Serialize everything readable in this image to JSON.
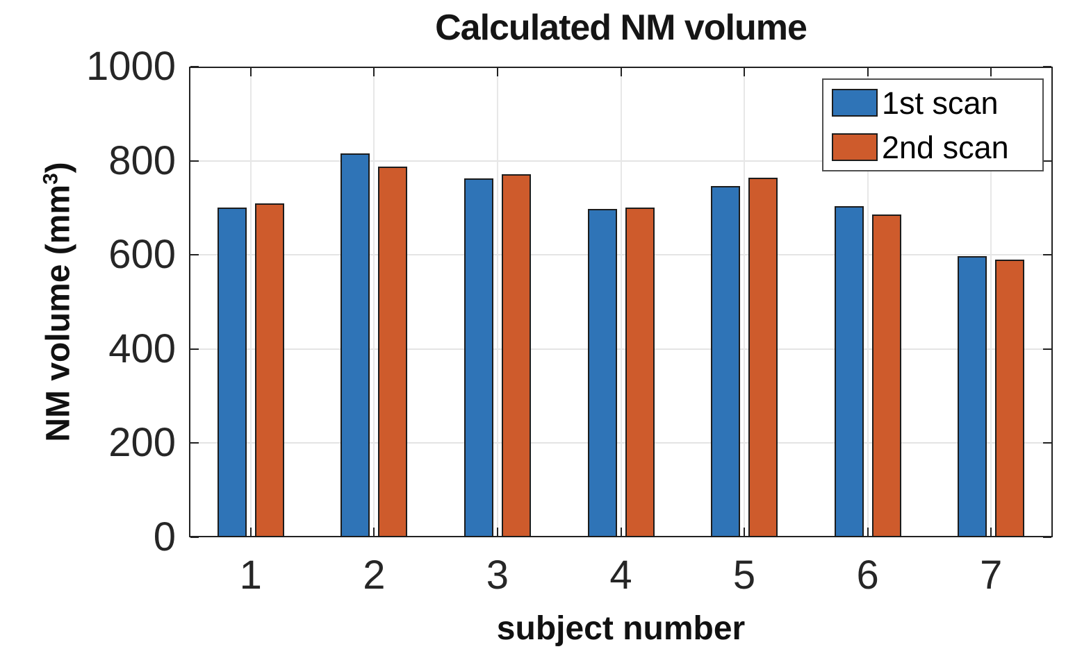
{
  "title": "Calculated NM volume",
  "xlabel": "subject number",
  "ylabel_parts": {
    "prefix": "NM volume (mm",
    "sup": "3",
    "suffix": ")"
  },
  "colors": {
    "series1": "#2F74B7",
    "series2": "#CE5B2C",
    "bar_edge": "#1c1c1c",
    "grid": "#e4e4e4",
    "axis": "#222222"
  },
  "chart_data": {
    "type": "bar",
    "title": "Calculated NM volume",
    "xlabel": "subject number",
    "ylabel": "NM volume (mm³)",
    "categories": [
      "1",
      "2",
      "3",
      "4",
      "5",
      "6",
      "7"
    ],
    "series": [
      {
        "name": "1st scan",
        "color": "#2F74B7",
        "values": [
          700,
          815,
          762,
          697,
          747,
          703,
          598
        ]
      },
      {
        "name": "2nd scan",
        "color": "#CE5B2C",
        "values": [
          710,
          787,
          772,
          701,
          764,
          686,
          590
        ]
      }
    ],
    "ylim": [
      0,
      1000
    ],
    "yticks": [
      0,
      200,
      400,
      600,
      800,
      1000
    ],
    "grid": true,
    "legend_position": "top-right"
  }
}
